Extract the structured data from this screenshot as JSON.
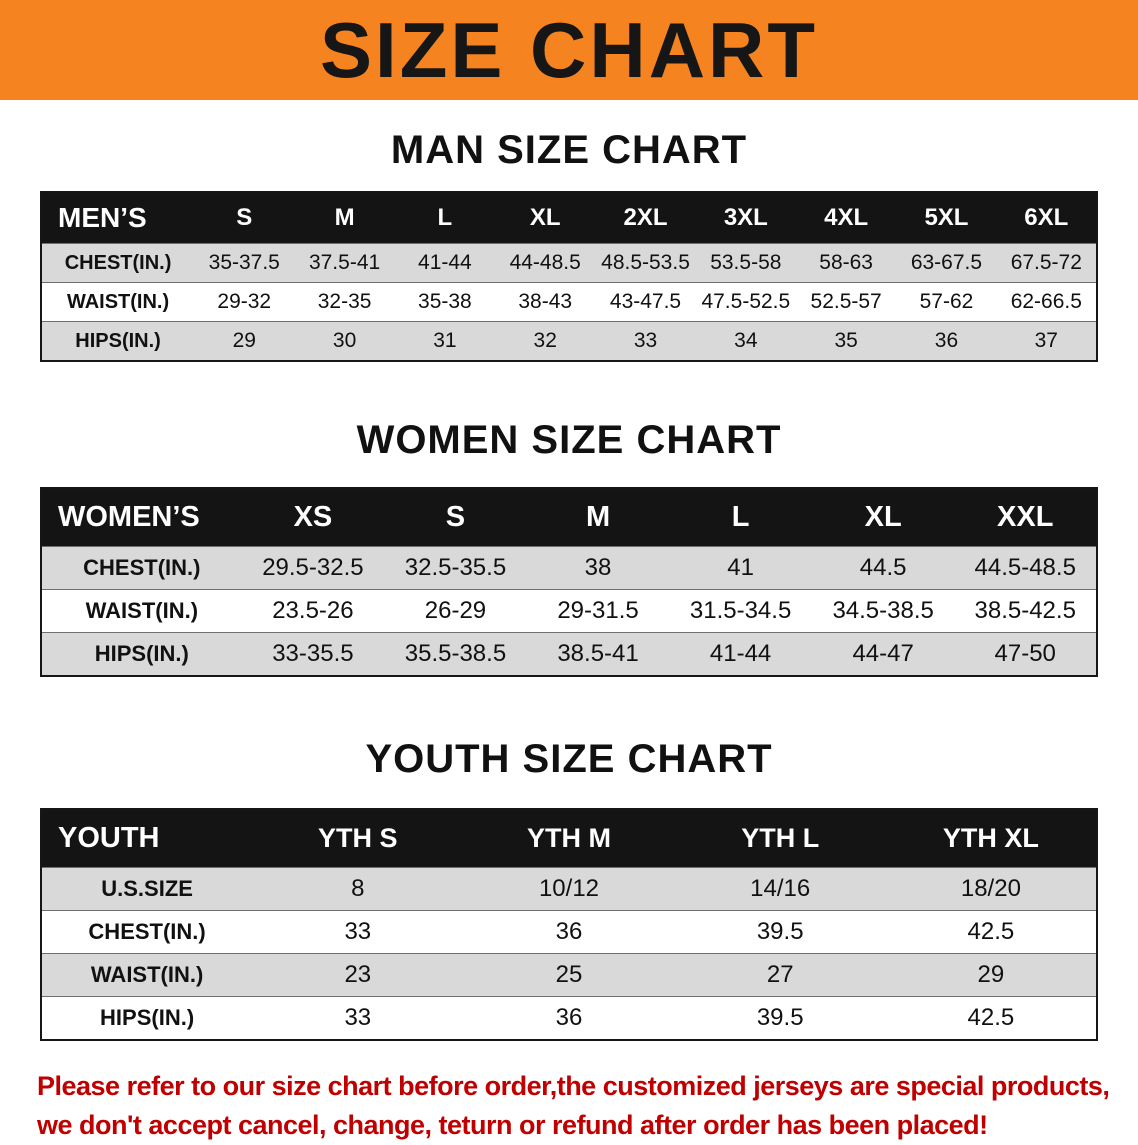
{
  "banner": {
    "title": "SIZE CHART"
  },
  "colors": {
    "banner_bg": "#F5831F",
    "table_header_bg": "#141414",
    "row_stripe": "#D9D9D9",
    "note_text": "#C00000"
  },
  "sections": {
    "men": {
      "heading": "MAN SIZE CHART",
      "table": {
        "label": "MEN’S",
        "columns": [
          "S",
          "M",
          "L",
          "XL",
          "2XL",
          "3XL",
          "4XL",
          "5XL",
          "6XL"
        ],
        "rows": [
          {
            "label": "CHEST(IN.)",
            "values": [
              "35-37.5",
              "37.5-41",
              "41-44",
              "44-48.5",
              "48.5-53.5",
              "53.5-58",
              "58-63",
              "63-67.5",
              "67.5-72"
            ]
          },
          {
            "label": "WAIST(IN.)",
            "values": [
              "29-32",
              "32-35",
              "35-38",
              "38-43",
              "43-47.5",
              "47.5-52.5",
              "52.5-57",
              "57-62",
              "62-66.5"
            ]
          },
          {
            "label": "HIPS(IN.)",
            "values": [
              "29",
              "30",
              "31",
              "32",
              "33",
              "34",
              "35",
              "36",
              "37"
            ]
          }
        ]
      }
    },
    "women": {
      "heading": "WOMEN SIZE CHART",
      "table": {
        "label": "WOMEN’S",
        "columns": [
          "XS",
          "S",
          "M",
          "L",
          "XL",
          "XXL"
        ],
        "rows": [
          {
            "label": "CHEST(IN.)",
            "values": [
              "29.5-32.5",
              "32.5-35.5",
              "38",
              "41",
              "44.5",
              "44.5-48.5"
            ]
          },
          {
            "label": "WAIST(IN.)",
            "values": [
              "23.5-26",
              "26-29",
              "29-31.5",
              "31.5-34.5",
              "34.5-38.5",
              "38.5-42.5"
            ]
          },
          {
            "label": "HIPS(IN.)",
            "values": [
              "33-35.5",
              "35.5-38.5",
              "38.5-41",
              "41-44",
              "44-47",
              "47-50"
            ]
          }
        ]
      }
    },
    "youth": {
      "heading": "YOUTH SIZE CHART",
      "table": {
        "label": "YOUTH",
        "columns": [
          "YTH S",
          "YTH M",
          "YTH L",
          "YTH XL"
        ],
        "rows": [
          {
            "label": "U.S.SIZE",
            "values": [
              "8",
              "10/12",
              "14/16",
              "18/20"
            ]
          },
          {
            "label": "CHEST(IN.)",
            "values": [
              "33",
              "36",
              "39.5",
              "42.5"
            ]
          },
          {
            "label": "WAIST(IN.)",
            "values": [
              "23",
              "25",
              "27",
              "29"
            ]
          },
          {
            "label": "HIPS(IN.)",
            "values": [
              "33",
              "36",
              "39.5",
              "42.5"
            ]
          }
        ]
      }
    }
  },
  "note": {
    "line1": "Please refer to our size chart before order,the customized jerseys are special products,",
    "line2": "we don't accept cancel, change, teturn or refund after order has been placed!"
  }
}
